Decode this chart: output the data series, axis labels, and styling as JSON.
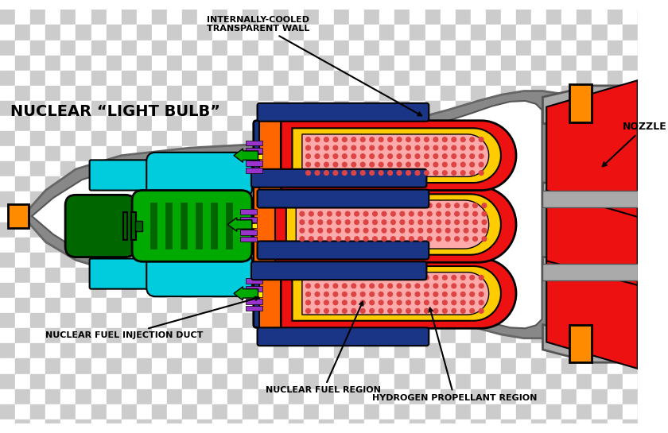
{
  "checker_light": "#cccccc",
  "checker_dark": "#ffffff",
  "checker_size": 20,
  "shell_gray": "#888888",
  "shell_gray_dark": "#666666",
  "shell_gray_light": "#aaaaaa",
  "white": "#ffffff",
  "cyan": "#00ccdd",
  "green_light": "#00aa00",
  "green_dark": "#006600",
  "orange": "#ff8c00",
  "blue_dark": "#1a3585",
  "blue_mid": "#2244aa",
  "red": "#ee1111",
  "orange_red": "#ff6600",
  "yellow": "#ffcc00",
  "pink": "#ffaaaa",
  "pink_dot": "#dd4444",
  "purple": "#9933cc",
  "yellow_inj": "#ffee00",
  "black": "#000000",
  "labels": {
    "light_bulb": "NUCLEAR “LIGHT BULB”",
    "transparent_wall": "INTERNALLY-COOLED\nTRANSPARENT WALL",
    "nozzle": "NOZZLE",
    "fuel_duct": "NUCLEAR FUEL INJECTION DUCT",
    "fuel_region": "NUCLEAR FUEL REGION",
    "propellant_region": "HYDROGEN PROPELLANT REGION"
  }
}
